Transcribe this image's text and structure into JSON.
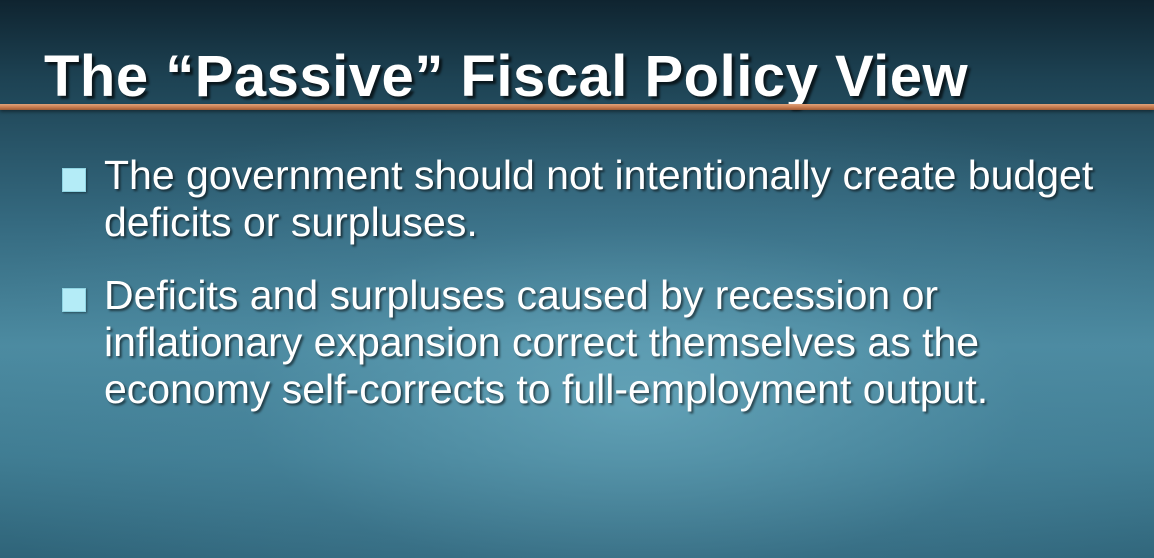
{
  "slide": {
    "title": "The “Passive” Fiscal Policy View",
    "colors": {
      "rule": "#c77b4e",
      "bullet_marker": "#b4ecf7",
      "text": "#ffffff"
    },
    "bullets": [
      {
        "marker_icon": "square-bullet-icon",
        "text": "The government should not intentionally create budget deficits or surpluses."
      },
      {
        "marker_icon": "square-bullet-icon",
        "text": "Deficits and surpluses caused by recession or inflationary expansion correct themselves as the economy self-corrects to full-employment output."
      }
    ]
  }
}
